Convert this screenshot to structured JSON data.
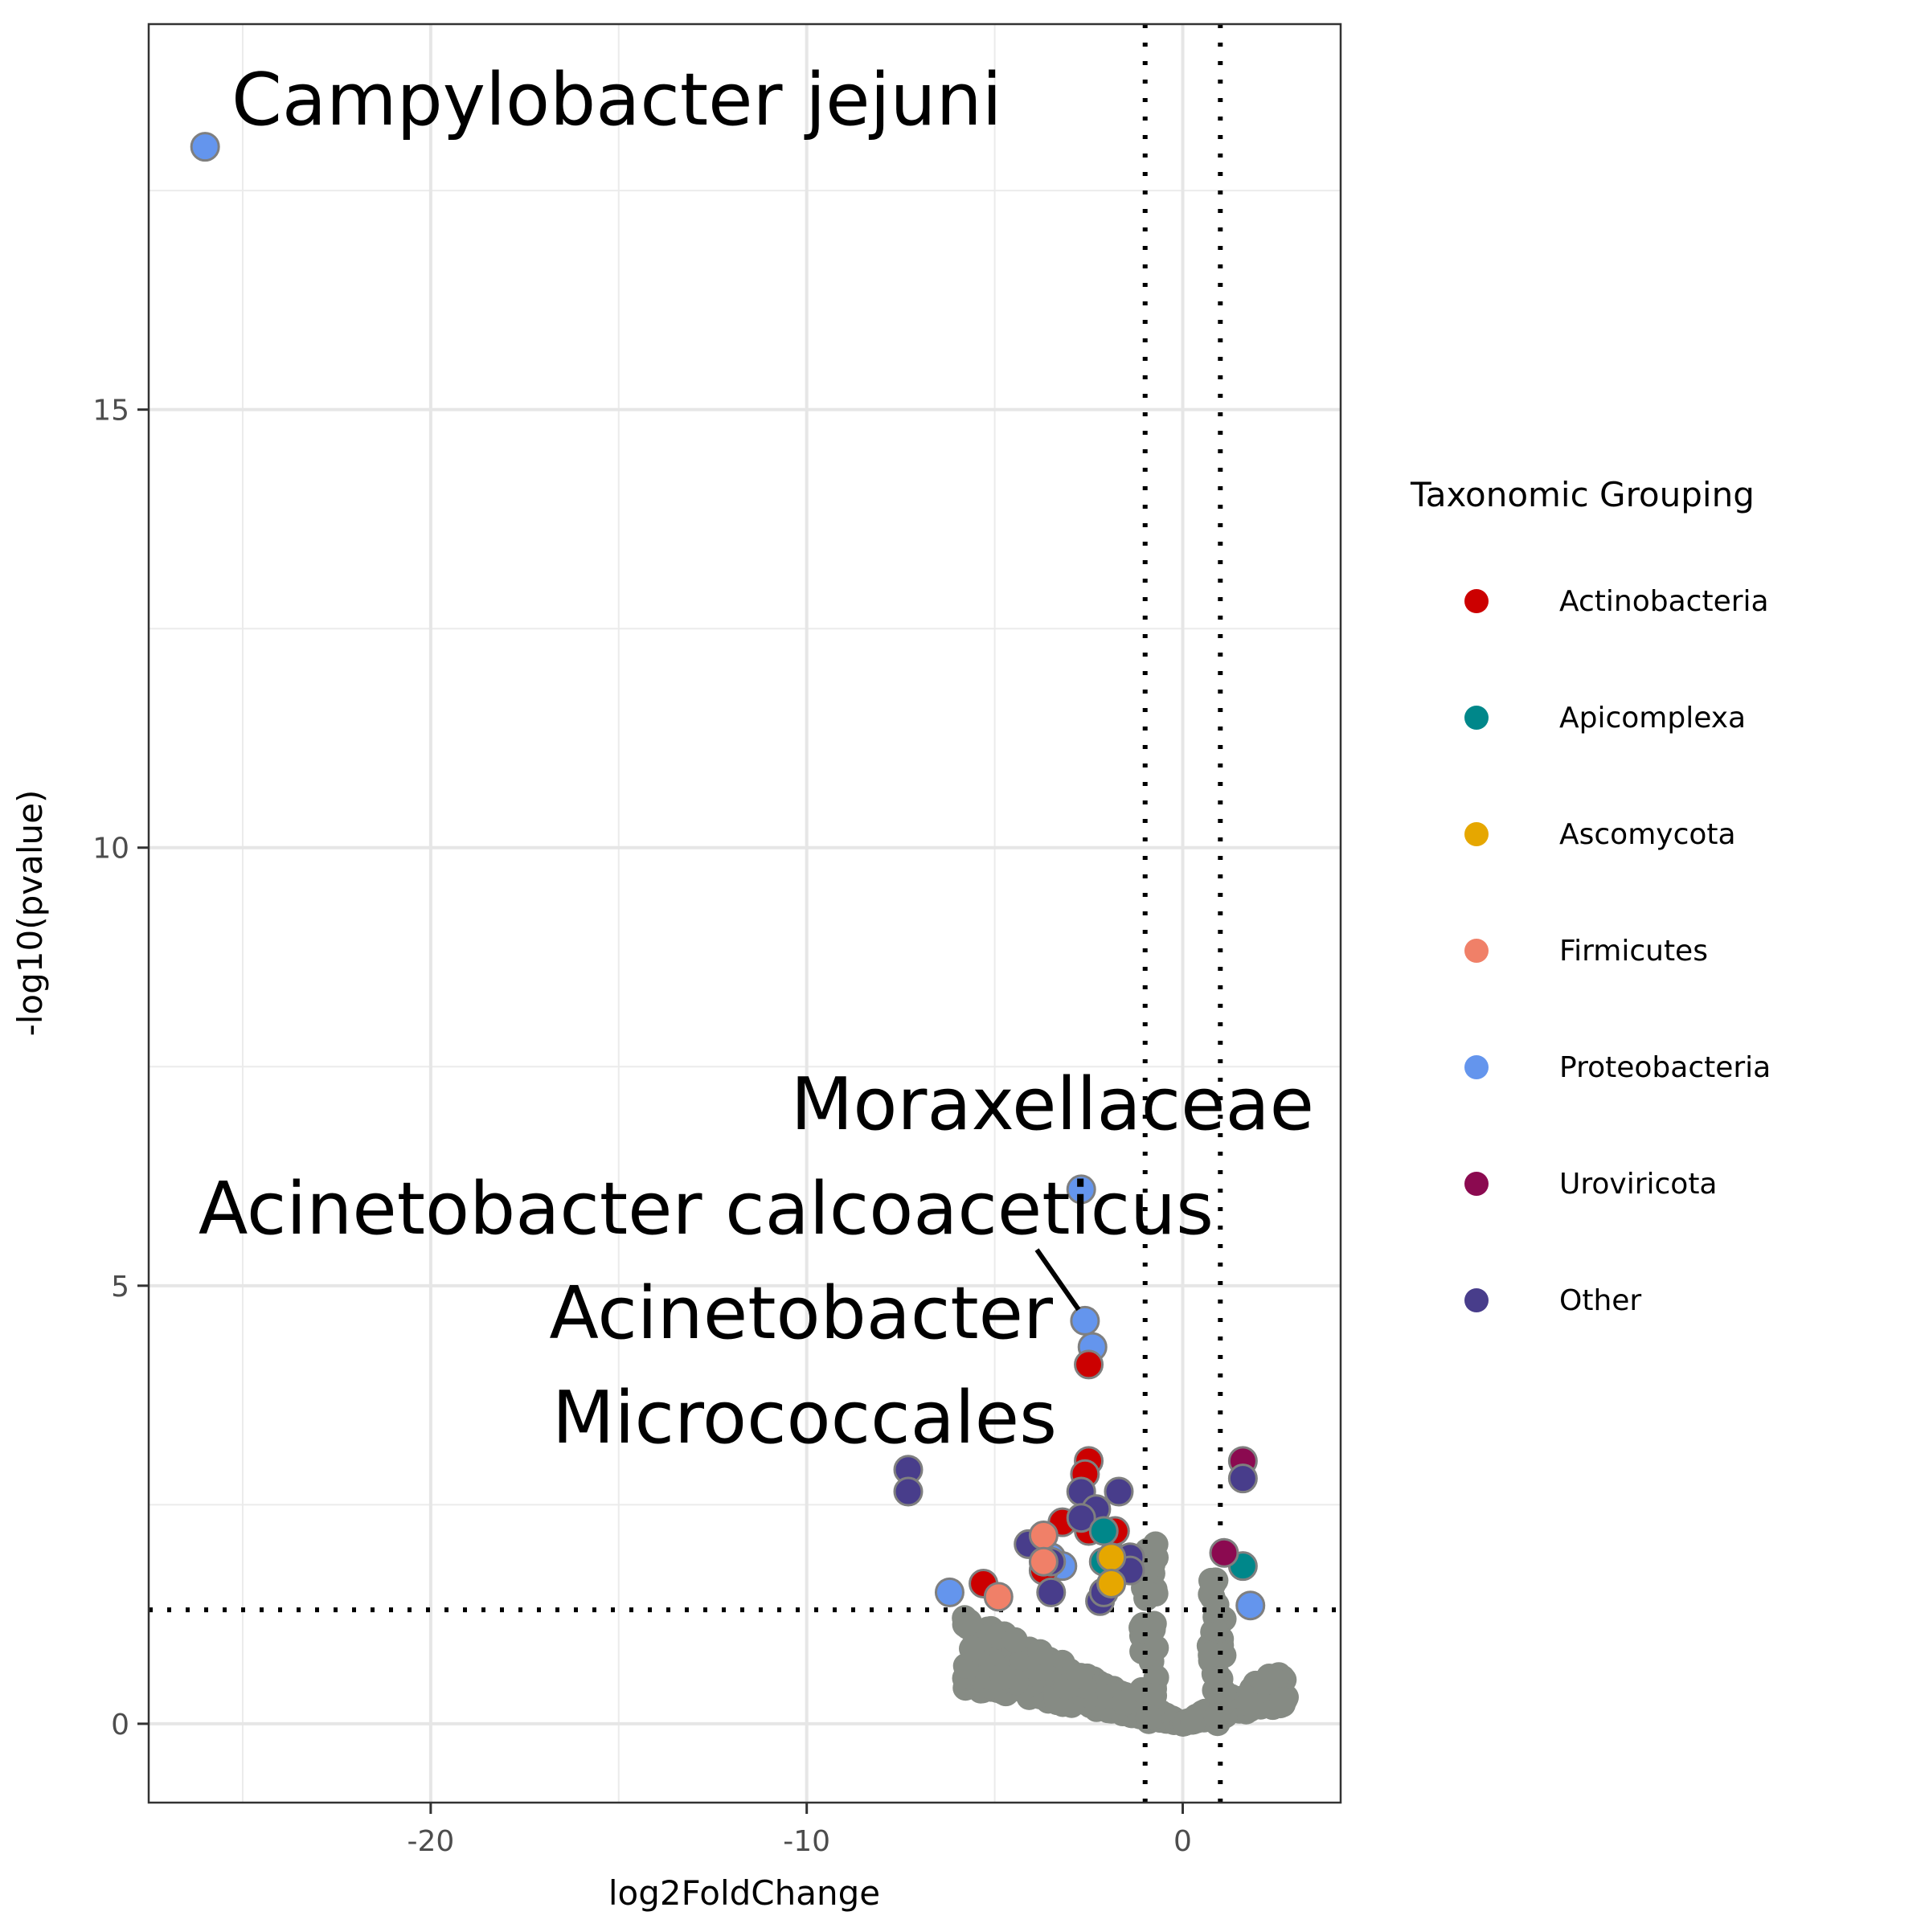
{
  "chart_data": {
    "type": "scatter",
    "title": "",
    "xlabel": "log2FoldChange",
    "ylabel": "-log10(pvalue)",
    "xlim": [
      -27.5,
      4.2
    ],
    "ylim": [
      -0.9,
      19.4
    ],
    "x_ticks": [
      -20,
      -10,
      0
    ],
    "x_tick_labels": [
      "-20",
      "-10",
      "0"
    ],
    "y_ticks": [
      0,
      5,
      10,
      15
    ],
    "y_tick_labels": [
      "0",
      "5",
      "10",
      "15"
    ],
    "grid": true,
    "thresholds": {
      "log2fc": [
        -1,
        1
      ],
      "neg_log10_p": 1.3
    },
    "legend": {
      "title": "Taxonomic Grouping",
      "position": "right",
      "entries": [
        {
          "label": "Actinobacteria",
          "color": "#cc0000"
        },
        {
          "label": "Apicomplexa",
          "color": "#00878a"
        },
        {
          "label": "Ascomycota",
          "color": "#e6a700"
        },
        {
          "label": "Firmicutes",
          "color": "#f08068"
        },
        {
          "label": "Proteobacteria",
          "color": "#6495ed"
        },
        {
          "label": "Uroviricota",
          "color": "#8b0a50"
        },
        {
          "label": "Other",
          "color": "#483d8b"
        }
      ]
    },
    "nonsignificant_color": "#868b84",
    "series": [
      {
        "group": "Proteobacteria",
        "points": [
          [
            -26.0,
            18.0
          ],
          [
            -2.7,
            6.1
          ],
          [
            -2.6,
            4.6
          ],
          [
            -2.4,
            4.3
          ],
          [
            -6.2,
            1.5
          ],
          [
            -3.5,
            1.9
          ],
          [
            -3.2,
            1.8
          ],
          [
            -1.8,
            1.9
          ],
          [
            1.8,
            1.35
          ]
        ]
      },
      {
        "group": "Actinobacteria",
        "points": [
          [
            -2.5,
            4.1
          ],
          [
            -2.5,
            3.0
          ],
          [
            -2.6,
            2.85
          ],
          [
            -3.2,
            2.3
          ],
          [
            -2.5,
            2.2
          ],
          [
            -1.8,
            2.2
          ],
          [
            -5.3,
            1.6
          ],
          [
            -3.7,
            1.75
          ]
        ]
      },
      {
        "group": "Other",
        "points": [
          [
            -7.3,
            2.9
          ],
          [
            -7.3,
            2.65
          ],
          [
            -1.7,
            2.65
          ],
          [
            -2.7,
            2.65
          ],
          [
            -2.3,
            2.45
          ],
          [
            -2.7,
            2.35
          ],
          [
            -4.1,
            2.05
          ],
          [
            -3.5,
            1.85
          ],
          [
            -1.4,
            1.9
          ],
          [
            -1.4,
            1.75
          ],
          [
            -3.5,
            1.5
          ],
          [
            -2.2,
            1.4
          ],
          [
            -2.1,
            1.5
          ]
        ]
      },
      {
        "group": "Apicomplexa",
        "points": [
          [
            -2.1,
            2.2
          ],
          [
            -2.1,
            1.85
          ],
          [
            1.6,
            1.8
          ]
        ]
      },
      {
        "group": "Ascomycota",
        "points": [
          [
            -1.9,
            1.9
          ],
          [
            -1.9,
            1.6
          ]
        ]
      },
      {
        "group": "Firmicutes",
        "points": [
          [
            -3.7,
            2.15
          ],
          [
            -3.7,
            1.85
          ],
          [
            -4.9,
            1.45
          ]
        ]
      },
      {
        "group": "Uroviricota",
        "points": [
          [
            1.6,
            3.0
          ],
          [
            1.1,
            1.95
          ]
        ]
      },
      {
        "group": "Other",
        "points": [
          [
            1.6,
            2.8
          ]
        ]
      }
    ],
    "annotations": [
      {
        "text": "Campylobacter jejuni",
        "x": -26.0,
        "y": 18.0
      },
      {
        "text": "Moraxellaceae",
        "x": -2.7,
        "y": 6.1
      },
      {
        "text": "Acinetobacter calcoaceticus",
        "x": -2.6,
        "y": 4.6
      },
      {
        "text": "Acinetobacter",
        "x": -2.4,
        "y": 4.3
      },
      {
        "text": "Micrococcales",
        "x": -2.5,
        "y": 4.1
      }
    ]
  }
}
